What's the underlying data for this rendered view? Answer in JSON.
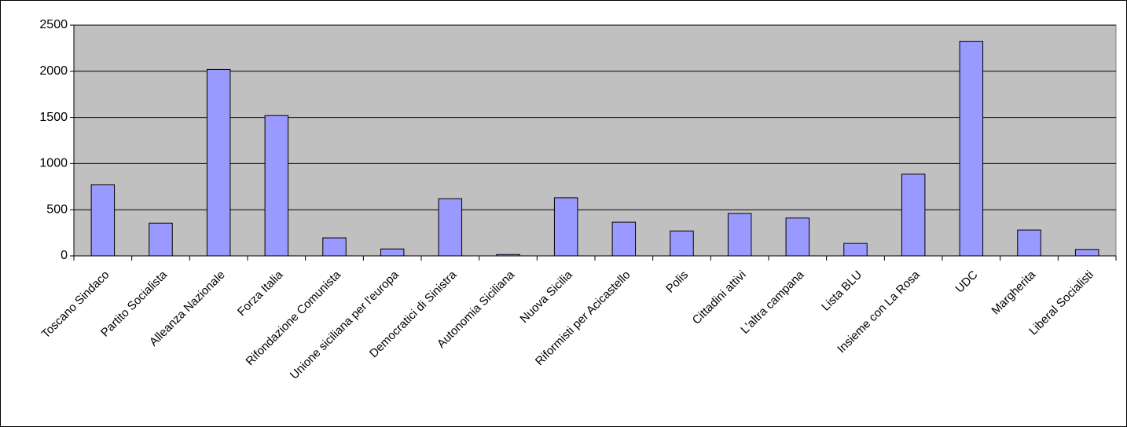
{
  "chart_data": {
    "type": "bar",
    "categories": [
      "Toscano Sindaco",
      "Partito Socialista",
      "Alleanza Nazionale",
      "Forza Italia",
      "Rifondazione Comunista",
      "Unione siciliana per l'europa",
      "Democratici di Sinistra",
      "Autonomia Siciliana",
      "Nuova Sicilia",
      "Riformisti per Acicastello",
      "Polis",
      "Cittadini attivi",
      "L'altra campana",
      "Lista BLU",
      "Insieme con La Rosa",
      "UDC",
      "Margherita",
      "Liberal Socialisti"
    ],
    "values": [
      770,
      355,
      2020,
      1520,
      195,
      75,
      620,
      15,
      630,
      365,
      270,
      460,
      410,
      135,
      885,
      2325,
      280,
      70
    ],
    "color": "#9999ff",
    "ylim": [
      0,
      2500
    ],
    "yticks": [
      0,
      500,
      1000,
      1500,
      2000,
      2500
    ],
    "grid": true
  }
}
